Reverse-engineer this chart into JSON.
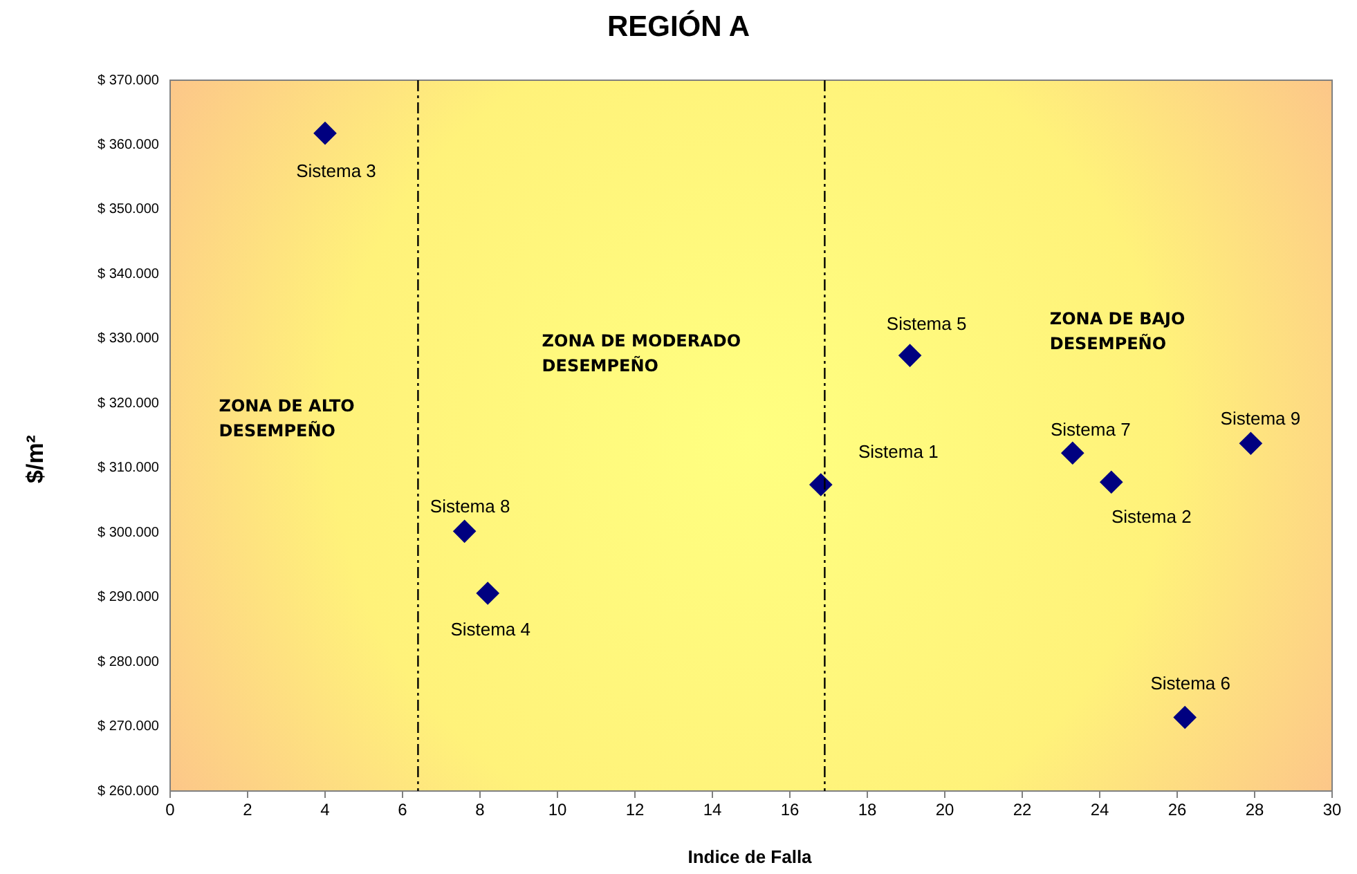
{
  "chart_data": {
    "type": "scatter",
    "title": "REGIÓN A",
    "xlabel": "Indice de Falla",
    "ylabel": "$/m²",
    "series": [
      {
        "name": "Sistema 1",
        "color": "#000080",
        "x": [
          16.8
        ],
        "values": [
          307400
        ]
      },
      {
        "name": "Sistema 2",
        "color": "#000080",
        "x": [
          24.3
        ],
        "values": [
          307800
        ]
      },
      {
        "name": "Sistema 3",
        "color": "#000080",
        "x": [
          4.0
        ],
        "values": [
          361800
        ]
      },
      {
        "name": "Sistema 4",
        "color": "#000080",
        "x": [
          8.2
        ],
        "values": [
          290600
        ]
      },
      {
        "name": "Sistema 5",
        "color": "#000080",
        "x": [
          19.1
        ],
        "values": [
          327400
        ]
      },
      {
        "name": "Sistema 6",
        "color": "#000080",
        "x": [
          26.2
        ],
        "values": [
          271400
        ]
      },
      {
        "name": "Sistema 7",
        "color": "#000080",
        "x": [
          23.3
        ],
        "values": [
          312300
        ]
      },
      {
        "name": "Sistema 8",
        "color": "#000080",
        "x": [
          7.6
        ],
        "values": [
          300200
        ]
      },
      {
        "name": "Sistema 9",
        "color": "#000080",
        "x": [
          27.9
        ],
        "values": [
          313800
        ]
      }
    ],
    "marker": "diamond",
    "legend": false,
    "grid": false,
    "xlim": [
      0,
      30
    ],
    "xticks": [
      0,
      2,
      4,
      6,
      8,
      10,
      12,
      14,
      16,
      18,
      20,
      22,
      24,
      26,
      28,
      30
    ],
    "ylim": [
      260000,
      370000
    ],
    "yticks": [
      {
        "value": 260000,
        "label": "$ 260.000"
      },
      {
        "value": 270000,
        "label": "$ 270.000"
      },
      {
        "value": 280000,
        "label": "$ 280.000"
      },
      {
        "value": 290000,
        "label": "$ 290.000"
      },
      {
        "value": 300000,
        "label": "$ 300.000"
      },
      {
        "value": 310000,
        "label": "$ 310.000"
      },
      {
        "value": 320000,
        "label": "$ 320.000"
      },
      {
        "value": 330000,
        "label": "$ 330.000"
      },
      {
        "value": 340000,
        "label": "$ 340.000"
      },
      {
        "value": 350000,
        "label": "$ 350.000"
      },
      {
        "value": 360000,
        "label": "$ 360.000"
      },
      {
        "value": 370000,
        "label": "$ 370.000"
      }
    ],
    "ref_lines": [
      {
        "axis": "x",
        "value": 6.4,
        "color": "#000000",
        "line_style": "dashed"
      },
      {
        "axis": "x",
        "value": 16.9,
        "color": "#000000",
        "line_style": "dashed"
      }
    ],
    "annotations": [
      "ZONA DE ALTO\nDESEMPEÑO",
      "ZONA DE MODERADO\nDESEMPEÑO",
      "ZONA DE BAJO\nDESEMPEÑO"
    ]
  }
}
